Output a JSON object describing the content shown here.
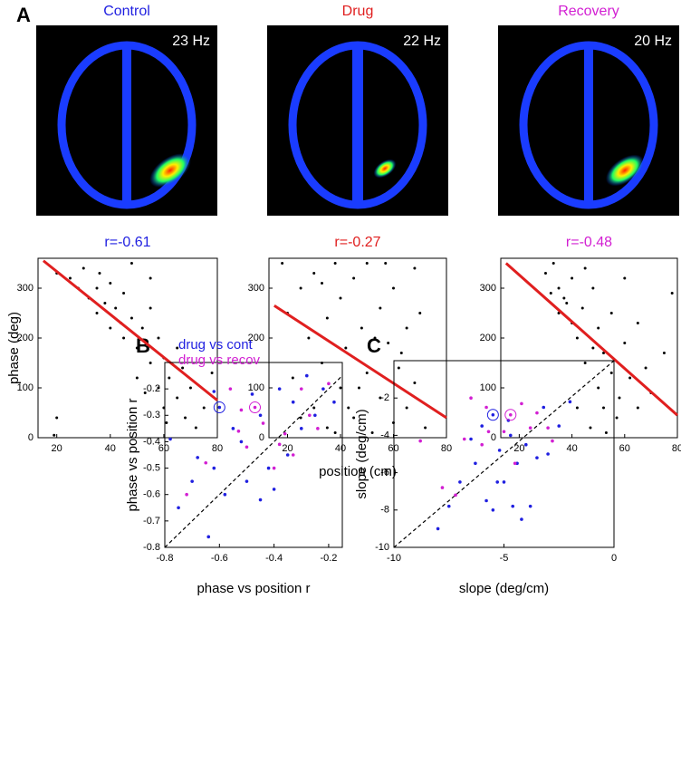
{
  "panel_labels": [
    "A",
    "B",
    "C"
  ],
  "heatmaps": [
    {
      "label": "Control",
      "frequency": "23 Hz",
      "color": "#1f1fe0"
    },
    {
      "label": "Drug",
      "frequency": "22 Hz",
      "color": "#e01f1f"
    },
    {
      "label": "Recovery",
      "frequency": "20 Hz",
      "color": "#d21fd2"
    }
  ],
  "chart_data": [
    {
      "type": "scatter",
      "title": "r=-0.61",
      "title_color": "#1f1fe0",
      "ylabel": "phase (deg)",
      "color": "#000000",
      "x": [
        20,
        25,
        28,
        30,
        32,
        35,
        35,
        38,
        40,
        40,
        42,
        45,
        45,
        48,
        50,
        50,
        52,
        55,
        55,
        58,
        58,
        60,
        60,
        62,
        65,
        65,
        68,
        70,
        72,
        75,
        20,
        19,
        48,
        55,
        78,
        44,
        53,
        61,
        36,
        67
      ],
      "y": [
        330,
        320,
        300,
        340,
        280,
        300,
        250,
        270,
        220,
        310,
        260,
        200,
        290,
        240,
        180,
        120,
        220,
        150,
        260,
        100,
        200,
        60,
        160,
        120,
        80,
        180,
        40,
        100,
        20,
        60,
        40,
        5,
        350,
        320,
        130,
        230,
        90,
        30,
        330,
        140
      ],
      "fit": {
        "x": [
          15,
          80
        ],
        "y": [
          355,
          75
        ],
        "color": "#e01f1f"
      },
      "xlim": [
        13,
        80
      ],
      "ylim": [
        0,
        360
      ],
      "xticks": [
        20,
        40,
        60,
        80
      ],
      "yticks": [
        0,
        100,
        200,
        300
      ]
    },
    {
      "type": "scatter",
      "title": "r=-0.27",
      "title_color": "#e01f1f",
      "xlabel": "position (cm)",
      "color": "#000000",
      "x": [
        18,
        20,
        22,
        25,
        28,
        30,
        30,
        33,
        35,
        35,
        38,
        40,
        40,
        42,
        45,
        45,
        48,
        50,
        50,
        52,
        55,
        55,
        58,
        60,
        60,
        62,
        65,
        65,
        68,
        70,
        72,
        25,
        38,
        47,
        57,
        63,
        43,
        33,
        53,
        68
      ],
      "y": [
        350,
        250,
        120,
        300,
        200,
        60,
        330,
        150,
        240,
        20,
        350,
        100,
        280,
        180,
        320,
        40,
        220,
        130,
        350,
        10,
        260,
        80,
        190,
        300,
        30,
        140,
        220,
        60,
        110,
        250,
        20,
        40,
        10,
        100,
        350,
        170,
        60,
        310,
        200,
        340
      ],
      "fit": {
        "x": [
          15,
          80
        ],
        "y": [
          265,
          40
        ],
        "color": "#e01f1f"
      },
      "xlim": [
        13,
        80
      ],
      "ylim": [
        0,
        360
      ],
      "xticks": [
        20,
        40,
        60,
        80
      ],
      "yticks": [
        0,
        100,
        200,
        300
      ]
    },
    {
      "type": "scatter",
      "title": "r=-0.48",
      "title_color": "#d21fd2",
      "color": "#000000",
      "x": [
        30,
        32,
        35,
        35,
        38,
        40,
        40,
        42,
        44,
        45,
        45,
        48,
        50,
        50,
        52,
        55,
        55,
        58,
        60,
        62,
        65,
        68,
        70,
        75,
        78,
        47,
        53,
        57,
        37,
        42,
        33,
        60,
        65,
        48,
        52
      ],
      "y": [
        330,
        290,
        300,
        250,
        270,
        230,
        320,
        200,
        260,
        150,
        340,
        180,
        220,
        100,
        170,
        130,
        250,
        80,
        190,
        120,
        60,
        140,
        90,
        170,
        290,
        20,
        10,
        40,
        280,
        60,
        350,
        320,
        230,
        300,
        60
      ],
      "fit": {
        "x": [
          15,
          80
        ],
        "y": [
          350,
          45
        ],
        "color": "#e01f1f"
      },
      "xlim": [
        13,
        80
      ],
      "ylim": [
        0,
        360
      ],
      "xticks": [
        20,
        40,
        60,
        80
      ],
      "yticks": [
        0,
        100,
        200,
        300
      ]
    },
    {
      "type": "scatter",
      "ylabel": "phase vs position r",
      "xlabel": "phase vs position r",
      "diagonal": true,
      "xlim": [
        -0.8,
        -0.15
      ],
      "ylim": [
        -0.8,
        -0.1
      ],
      "xticks": [
        -0.8,
        -0.6,
        -0.4,
        -0.2
      ],
      "yticks": [
        -0.8,
        -0.7,
        -0.6,
        -0.5,
        -0.4,
        -0.3,
        -0.2
      ],
      "series": [
        {
          "name": "drug vs cont",
          "color": "#1f1fe0",
          "highlight": 0,
          "x": [
            -0.6,
            -0.78,
            -0.75,
            -0.7,
            -0.68,
            -0.64,
            -0.62,
            -0.58,
            -0.55,
            -0.52,
            -0.5,
            -0.48,
            -0.45,
            -0.42,
            -0.4,
            -0.38,
            -0.35,
            -0.33,
            -0.3,
            -0.28,
            -0.25,
            -0.22,
            -0.18,
            -0.62,
            -0.45
          ],
          "y": [
            -0.27,
            -0.39,
            -0.65,
            -0.55,
            -0.46,
            -0.76,
            -0.5,
            -0.6,
            -0.35,
            -0.4,
            -0.55,
            -0.22,
            -0.3,
            -0.5,
            -0.58,
            -0.2,
            -0.45,
            -0.25,
            -0.35,
            -0.15,
            -0.3,
            -0.2,
            -0.25,
            -0.21,
            -0.62
          ]
        },
        {
          "name": "drug vs recov",
          "color": "#d21fd2",
          "highlight": 0,
          "x": [
            -0.47,
            -0.72,
            -0.65,
            -0.56,
            -0.53,
            -0.5,
            -0.44,
            -0.4,
            -0.36,
            -0.33,
            -0.3,
            -0.27,
            -0.24,
            -0.2,
            -0.52,
            -0.38
          ],
          "y": [
            -0.27,
            -0.6,
            -0.48,
            -0.2,
            -0.36,
            -0.42,
            -0.33,
            -0.5,
            -0.37,
            -0.45,
            -0.2,
            -0.3,
            -0.35,
            -0.18,
            -0.28,
            -0.41
          ]
        }
      ]
    },
    {
      "type": "scatter",
      "ylabel": "slope (deg/cm)",
      "xlabel": "slope (deg/cm)",
      "diagonal": true,
      "xlim": [
        -10,
        0
      ],
      "ylim": [
        -10,
        0
      ],
      "xticks": [
        -10,
        -5,
        0
      ],
      "yticks": [
        -10,
        -8,
        -6,
        -4,
        -2
      ],
      "series": [
        {
          "name": "drug vs cont",
          "color": "#1f1fe0",
          "highlight": 0,
          "x": [
            -5.5,
            -8,
            -7.5,
            -7,
            -6.5,
            -6.3,
            -6,
            -5.8,
            -5.5,
            -5.2,
            -5,
            -4.8,
            -4.6,
            -4.4,
            -4.2,
            -4,
            -3.8,
            -3.5,
            -3.2,
            -3,
            -2.5,
            -2,
            -4.7,
            -5.3
          ],
          "y": [
            -2.9,
            -9,
            -7.8,
            -6.5,
            -4.2,
            -5.5,
            -3.5,
            -7.5,
            -8,
            -4.8,
            -6.5,
            -3.2,
            -7.8,
            -5.5,
            -8.5,
            -4.5,
            -7.8,
            -5.2,
            -2.5,
            -5,
            -3.5,
            -2.2,
            -4,
            -6.5
          ]
        },
        {
          "name": "drug vs recov",
          "color": "#d21fd2",
          "highlight": 0,
          "x": [
            -4.7,
            -8.8,
            -7.8,
            -7.2,
            -6.8,
            -6.5,
            -6,
            -5.7,
            -5,
            -4.5,
            -4.2,
            -3.8,
            -3.5,
            -3,
            -2.8,
            -5.8
          ],
          "y": [
            -2.9,
            -4.3,
            -6.8,
            -7.2,
            -4.2,
            -2,
            -4.5,
            -3.8,
            -3.8,
            -5.5,
            -2.3,
            -3.6,
            -2.8,
            -3.6,
            -4.3,
            -2.5
          ]
        }
      ]
    }
  ]
}
